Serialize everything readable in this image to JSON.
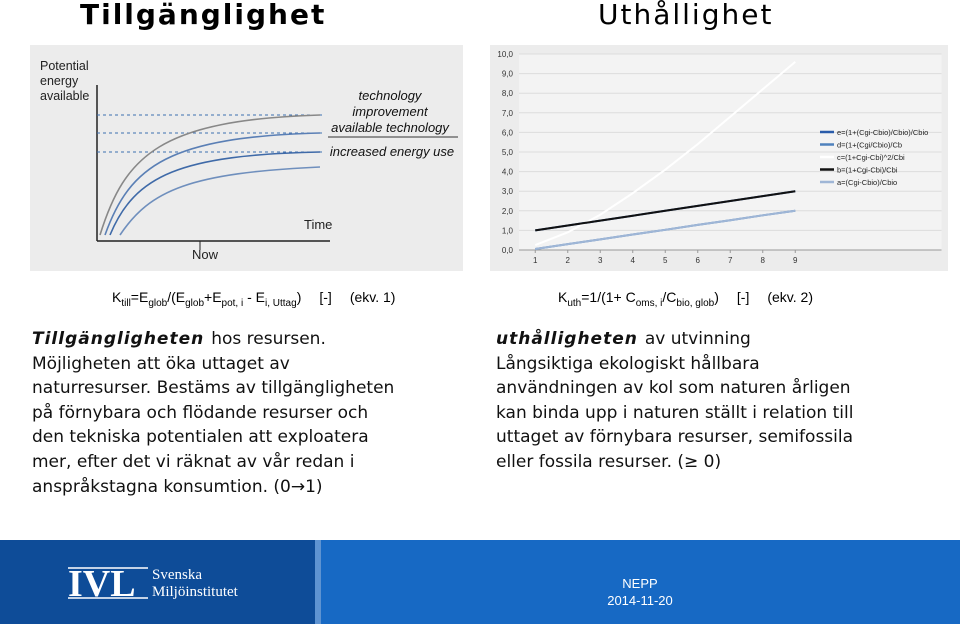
{
  "titles": {
    "left": "Tillgänglighet",
    "right": "Uthållighet"
  },
  "schematic": {
    "y_label": [
      "Potential",
      "energy",
      "available"
    ],
    "notes": [
      "technology",
      "improvement",
      "available technology"
    ],
    "use_note": "increased energy use",
    "x_label": "Time",
    "now_label": "Now"
  },
  "chart_data": {
    "type": "line",
    "x": [
      1,
      2,
      3,
      4,
      5,
      6,
      7,
      8,
      9
    ],
    "xlim": [
      0.5,
      13.5
    ],
    "xticks": [
      1,
      2,
      3,
      4,
      5,
      6,
      7,
      8,
      9
    ],
    "ylim": [
      0,
      10
    ],
    "yticks": [
      {
        "value": 0,
        "label": "0,0"
      },
      {
        "value": 1,
        "label": "1,0"
      },
      {
        "value": 2,
        "label": "2,0"
      },
      {
        "value": 3,
        "label": "3,0"
      },
      {
        "value": 4,
        "label": "4,0"
      },
      {
        "value": 5,
        "label": "5,0"
      },
      {
        "value": 6,
        "label": "6,0"
      },
      {
        "value": 7,
        "label": "7,0"
      },
      {
        "value": 8,
        "label": "8,0"
      },
      {
        "value": 9,
        "label": "9,0"
      },
      {
        "value": 10,
        "label": "10,0"
      }
    ],
    "grid": true,
    "series": [
      {
        "name": "e=(1+(Cgi-Cbio)/Cbio)/Cbio",
        "color": "#2a5caa",
        "values": [
          1.0,
          1.25,
          1.5,
          1.75,
          2.0,
          2.25,
          2.5,
          2.75,
          3.0
        ]
      },
      {
        "name": "d=(1+(Cgi/Cbio)/Cb",
        "color": "#4f81bd",
        "values": [
          0.05,
          0.3,
          0.54,
          0.79,
          1.03,
          1.28,
          1.52,
          1.77,
          2.0
        ]
      },
      {
        "name": "c=(1+Cgi-Cbi)^2/Cbi",
        "color": "#ffffff",
        "values": [
          0.25,
          0.9,
          1.8,
          2.9,
          4.1,
          5.4,
          6.8,
          8.2,
          9.6
        ]
      },
      {
        "name": "b=(1+Cgi-Cbi)/Cbi",
        "color": "#111111",
        "values": [
          1.0,
          1.25,
          1.5,
          1.75,
          2.0,
          2.25,
          2.5,
          2.75,
          3.0
        ]
      },
      {
        "name": "a=(Cgi-Cbio)/Cbio",
        "color": "#9fb6d6",
        "values": [
          0.05,
          0.3,
          0.54,
          0.79,
          1.03,
          1.28,
          1.52,
          1.77,
          2.0
        ]
      }
    ]
  },
  "formulas": {
    "left": {
      "parts": [
        {
          "text": "K"
        },
        {
          "text": "till",
          "sub": true
        },
        {
          "text": "=E"
        },
        {
          "text": "glob",
          "sub": true
        },
        {
          "text": "/(E"
        },
        {
          "text": "glob",
          "sub": true
        },
        {
          "text": "+E"
        },
        {
          "text": "pot, i",
          "sub": true
        },
        {
          "text": " - E"
        },
        {
          "text": "i, Uttag",
          "sub": true
        },
        {
          "text": ")"
        }
      ],
      "unit": "[-]",
      "ref": "(ekv. 1)"
    },
    "right": {
      "parts": [
        {
          "text": "K"
        },
        {
          "text": "uth",
          "sub": true
        },
        {
          "text": "=1/(1+ C"
        },
        {
          "text": "oms, i",
          "sub": true
        },
        {
          "text": "/C"
        },
        {
          "text": "bio, glob",
          "sub": true
        },
        {
          "text": ")"
        }
      ],
      "unit": "[-]",
      "ref": "(ekv. 2)"
    }
  },
  "left_text": {
    "lead": "Tillgängligheten",
    "lines": [
      "hos resursen.",
      "Möjligheten att öka uttaget av",
      "naturresurser. Bestäms av tillgängligheten",
      "på förnybara och flödande resurser och",
      "den tekniska potentialen att exploatera",
      "mer, efter det vi räknat av vår redan i",
      "anspråkstagna konsumtion. (0→1)"
    ]
  },
  "right_text": {
    "lead": "uthålligheten",
    "lines": [
      "av utvinning",
      "Långsiktiga ekologiskt hållbara",
      "användningen av kol som naturen årligen",
      "kan binda upp i naturen ställt i relation till",
      "uttaget av förnybara resurser, semifossila",
      "eller fossila resurser. (≥ 0)"
    ]
  },
  "footer": {
    "logo": "IVL",
    "org": [
      "Svenska",
      "Miljöinstitutet"
    ],
    "event": "NEPP",
    "date": "2014-11-20"
  }
}
